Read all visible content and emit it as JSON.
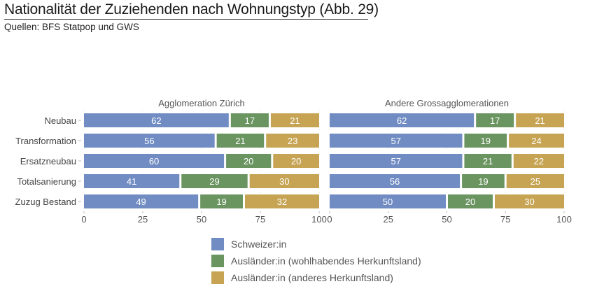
{
  "header": {
    "title": "Nationalität der Zuziehenden nach Wohnungstyp  (Abb. 29)",
    "subtitle": "Quellen: BFS Statpop und GWS"
  },
  "chart_data": {
    "type": "bar",
    "orientation": "horizontal",
    "stacked": true,
    "title": "Nationalität der Zuziehenden nach Wohnungstyp  (Abb. 29)",
    "subtitle": "Quellen: BFS Statpop und GWS",
    "xlim": [
      0,
      100
    ],
    "xticks": [
      0,
      25,
      50,
      75,
      100
    ],
    "grid": true,
    "legend_position": "bottom-center",
    "categories": [
      "Neubau",
      "Transformation",
      "Ersatzneubau",
      "Totalsanierung",
      "Zuzug Bestand"
    ],
    "series_meta": [
      {
        "name": "Schweizer:in",
        "color": "#708cc2"
      },
      {
        "name": "Ausländer:in (wohlhabendes Herkunftsland)",
        "color": "#6a9460"
      },
      {
        "name": "Ausländer:in (anderes Herkunftsland)",
        "color": "#c6a453"
      }
    ],
    "panels": [
      {
        "title": "Agglomeration Zürich",
        "series": [
          {
            "name": "Schweizer:in",
            "values": [
              62,
              56,
              60,
              41,
              49
            ]
          },
          {
            "name": "Ausländer:in (wohlhabendes Herkunftsland)",
            "values": [
              17,
              21,
              20,
              29,
              19
            ]
          },
          {
            "name": "Ausländer:in (anderes Herkunftsland)",
            "values": [
              21,
              23,
              20,
              30,
              32
            ]
          }
        ]
      },
      {
        "title": "Andere Grossagglomerationen",
        "series": [
          {
            "name": "Schweizer:in",
            "values": [
              62,
              57,
              57,
              56,
              50
            ]
          },
          {
            "name": "Ausländer:in (wohlhabendes Herkunftsland)",
            "values": [
              17,
              19,
              21,
              19,
              20
            ]
          },
          {
            "name": "Ausländer:in (anderes Herkunftsland)",
            "values": [
              21,
              24,
              22,
              25,
              30
            ]
          }
        ]
      }
    ]
  }
}
